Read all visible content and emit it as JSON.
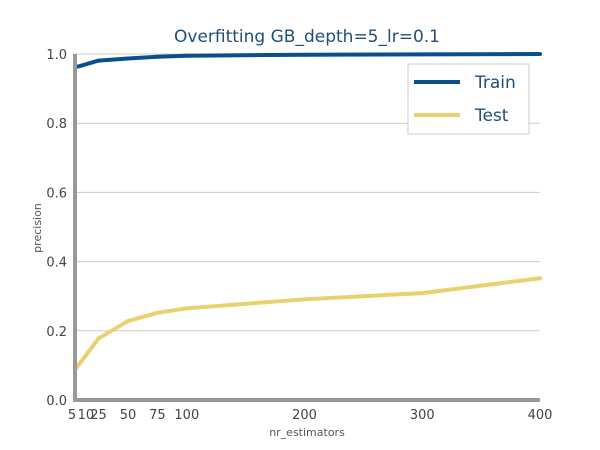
{
  "chart_data": {
    "type": "line",
    "title": "Overfitting GB_depth=5_lr=0.1",
    "xlabel": "nr_estimators",
    "ylabel": "precision",
    "x": [
      5,
      10,
      25,
      50,
      75,
      100,
      200,
      300,
      400
    ],
    "xticks": [
      5,
      10,
      25,
      50,
      75,
      100,
      200,
      300,
      400
    ],
    "yticks": [
      "0.0",
      "0.2",
      "0.4",
      "0.6",
      "0.8",
      "1.0"
    ],
    "xlim": [
      5,
      400
    ],
    "ylim": [
      0,
      1.0
    ],
    "grid": "horizontal",
    "legend_position": "top-right",
    "series": [
      {
        "name": "Train",
        "color": "#0b4f8a",
        "values": [
          0.962,
          0.966,
          0.981,
          0.987,
          0.992,
          0.995,
          0.998,
          0.999,
          1.0
        ]
      },
      {
        "name": "Test",
        "color": "#e9d170",
        "values": [
          0.088,
          0.11,
          0.178,
          0.228,
          0.252,
          0.265,
          0.291,
          0.309,
          0.352
        ]
      }
    ]
  }
}
